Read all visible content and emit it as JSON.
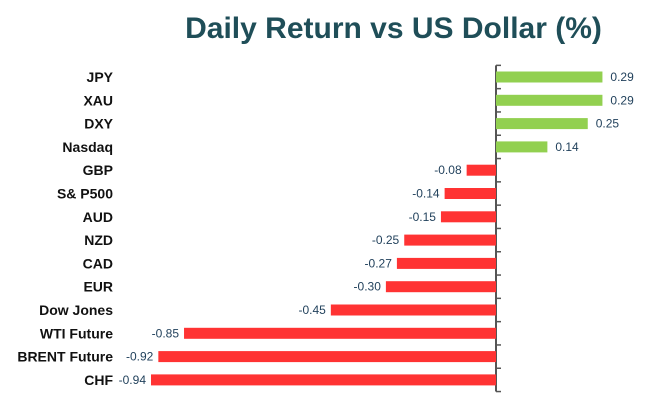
{
  "chart_data": {
    "type": "bar",
    "orientation": "horizontal",
    "title": "Daily Return vs US Dollar (%)",
    "xlabel": "",
    "ylabel": "",
    "categories": [
      "JPY",
      "XAU",
      "DXY",
      "Nasdaq",
      "GBP",
      "S& P500",
      "AUD",
      "NZD",
      "CAD",
      "EUR",
      "Dow Jones",
      "WTI Future",
      "BRENT Future",
      "CHF"
    ],
    "values": [
      0.29,
      0.29,
      0.25,
      0.14,
      -0.08,
      -0.14,
      -0.15,
      -0.25,
      -0.27,
      -0.3,
      -0.45,
      -0.85,
      -0.92,
      -0.94
    ],
    "value_labels": [
      "0.29",
      "0.29",
      "0.25",
      "0.14",
      "-0.08",
      "-0.14",
      "-0.15",
      "-0.25",
      "-0.27",
      "-0.30",
      "-0.45",
      "-0.85",
      "-0.92",
      "-0.94"
    ],
    "xlim": [
      -0.94,
      0.29
    ],
    "grid": false,
    "legend": "none",
    "colors": {
      "positive": "#92d050",
      "negative": "#ff3333",
      "axis": "#555555",
      "title": "#1f4e58"
    }
  }
}
